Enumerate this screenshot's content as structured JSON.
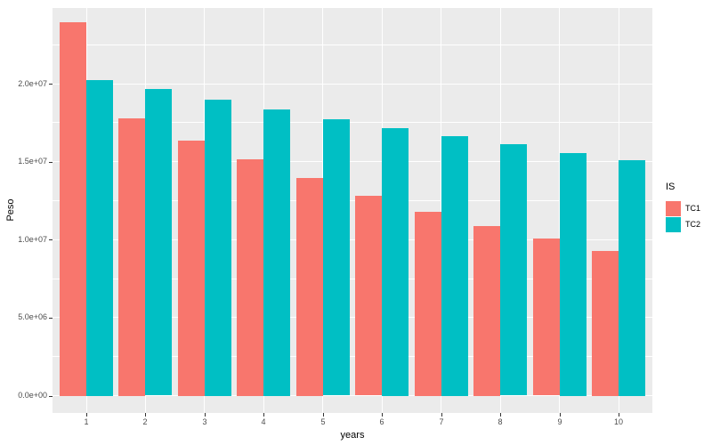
{
  "chart_data": {
    "type": "bar",
    "title": "",
    "xlabel": "years",
    "ylabel": "Peso",
    "categories": [
      "1",
      "2",
      "3",
      "4",
      "5",
      "6",
      "7",
      "8",
      "9",
      "10"
    ],
    "series": [
      {
        "name": "TC1",
        "color": "#F8766D",
        "values": [
          23950000,
          17800000,
          16350000,
          15150000,
          13950000,
          12800000,
          11800000,
          10900000,
          10050000,
          9300000
        ]
      },
      {
        "name": "TC2",
        "color": "#00BFC4",
        "values": [
          20250000,
          19650000,
          19000000,
          18350000,
          17700000,
          17150000,
          16650000,
          16100000,
          15550000,
          15100000
        ]
      }
    ],
    "ylim": [
      -1110000,
      24850000
    ],
    "y_major_ticks": [
      {
        "label": "0.0e+00",
        "value": 0
      },
      {
        "label": "5.0e+06",
        "value": 5000000
      },
      {
        "label": "1.0e+07",
        "value": 10000000
      },
      {
        "label": "1.5e+07",
        "value": 15000000
      },
      {
        "label": "2.0e+07",
        "value": 20000000
      }
    ],
    "y_minor_values": [
      2500000,
      7500000,
      12500000,
      17500000,
      22500000
    ],
    "legend": {
      "title": "IS",
      "position": "right"
    },
    "grid": true,
    "colors": {
      "panel_bg": "#EBEBEB",
      "grid": "#FFFFFF",
      "axis_text": "#4D4D4D",
      "axis_title": "#000000",
      "tick_mark": "#333333",
      "background": "#FFFFFF"
    }
  }
}
